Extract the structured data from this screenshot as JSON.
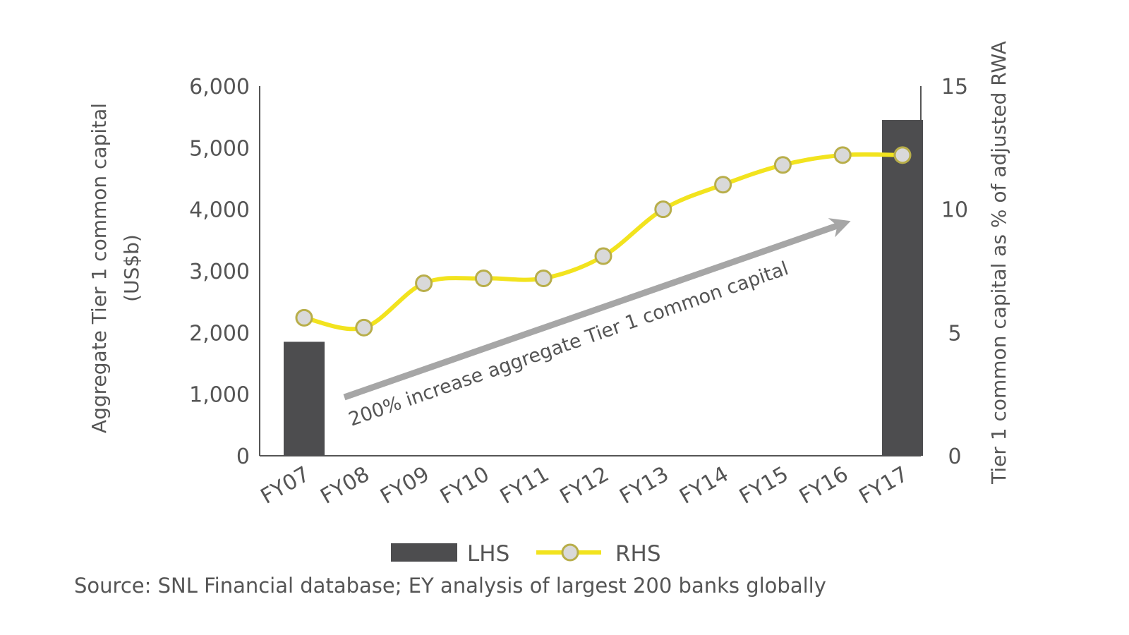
{
  "chart_data": {
    "type": "bar",
    "categories": [
      "FY07",
      "FY08",
      "FY09",
      "FY10",
      "FY11",
      "FY12",
      "FY13",
      "FY14",
      "FY15",
      "FY16",
      "FY17"
    ],
    "series": [
      {
        "name": "LHS",
        "type": "bar",
        "axis": "left",
        "values": [
          1850,
          null,
          null,
          null,
          null,
          null,
          null,
          null,
          null,
          null,
          5450
        ]
      },
      {
        "name": "RHS",
        "type": "line",
        "axis": "right",
        "values": [
          5.6,
          5.2,
          7.0,
          7.2,
          7.2,
          8.1,
          10.0,
          11.0,
          11.8,
          12.2,
          12.2
        ]
      }
    ],
    "ylabel": "Aggregate Tier 1 common capital (US$b)",
    "ylabel_lines": [
      "Aggregate Tier 1 common capital",
      "(US$b)"
    ],
    "ylim": [
      0,
      6000
    ],
    "yticks": [
      0,
      1000,
      2000,
      3000,
      4000,
      5000,
      6000
    ],
    "ytick_labels": [
      "0",
      "1,000",
      "2,000",
      "3,000",
      "4,000",
      "5,000",
      "6,000"
    ],
    "y2label": "Tier 1 common capital as % of adjusted RWA",
    "y2lim": [
      0,
      15
    ],
    "y2ticks": [
      0,
      5,
      10,
      15
    ],
    "y2tick_labels": [
      "0",
      "5",
      "10",
      "15"
    ],
    "annotation": "200% increase aggregate Tier 1 common capital",
    "legend": {
      "position": "bottom",
      "entries": [
        "LHS",
        "RHS"
      ]
    },
    "grid": false,
    "colors": {
      "bar": "#4d4d4f",
      "line": "#f2e31e",
      "marker_fill": "#d9d9d9",
      "marker_stroke": "#b8ae4a",
      "arrow": "#a6a6a6",
      "axis": "#555555"
    }
  },
  "source": "Source: SNL Financial database; EY analysis of largest 200 banks globally"
}
